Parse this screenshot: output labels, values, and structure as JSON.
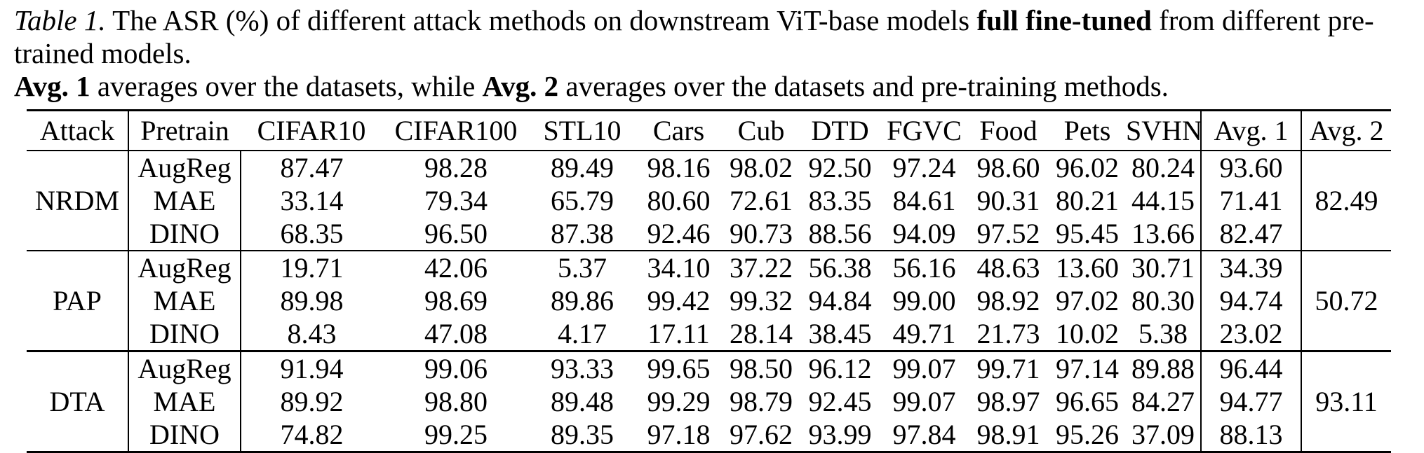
{
  "caption": {
    "line1_runs": [
      {
        "text": "Table 1.",
        "style": "italic"
      },
      {
        "text": " The ASR (%) of different attack methods on downstream ViT-base models ",
        "style": "normal"
      },
      {
        "text": "full fine-tuned",
        "style": "bold"
      },
      {
        "text": " from different pre-trained models.",
        "style": "normal"
      }
    ],
    "line2_runs": [
      {
        "text": "Avg. 1",
        "style": "bold"
      },
      {
        "text": " averages over the datasets, while ",
        "style": "normal"
      },
      {
        "text": "Avg. 2",
        "style": "bold"
      },
      {
        "text": " averages over the datasets and pre-training methods.",
        "style": "normal"
      }
    ]
  },
  "table": {
    "columns": [
      "Attack",
      "Pretrain",
      "CIFAR10",
      "CIFAR100",
      "STL10",
      "Cars",
      "Cub",
      "DTD",
      "FGVC",
      "Food",
      "Pets",
      "SVHN",
      "Avg. 1",
      "Avg. 2"
    ],
    "blocks": [
      {
        "attack": "NRDM",
        "attack_bold": false,
        "avg2": "82.49",
        "avg2_bold": false,
        "rows": [
          {
            "pretrain": "AugReg",
            "values": [
              "87.47",
              "98.28",
              "89.49",
              "98.16",
              "98.02",
              "92.50",
              "97.24",
              "98.60",
              "96.02",
              "80.24"
            ],
            "avg1": "93.60"
          },
          {
            "pretrain": "MAE",
            "values": [
              "33.14",
              "79.34",
              "65.79",
              "80.60",
              "72.61",
              "83.35",
              "84.61",
              "90.31",
              "80.21",
              "44.15"
            ],
            "avg1": "71.41"
          },
          {
            "pretrain": "DINO",
            "values": [
              "68.35",
              "96.50",
              "87.38",
              "92.46",
              "90.73",
              "88.56",
              "94.09",
              "97.52",
              "95.45",
              "13.66"
            ],
            "avg1": "82.47"
          }
        ]
      },
      {
        "attack": "PAP",
        "attack_bold": false,
        "avg2": "50.72",
        "avg2_bold": false,
        "rows": [
          {
            "pretrain": "AugReg",
            "values": [
              "19.71",
              "42.06",
              "5.37",
              "34.10",
              "37.22",
              "56.38",
              "56.16",
              "48.63",
              "13.60",
              "30.71"
            ],
            "avg1": "34.39"
          },
          {
            "pretrain": "MAE",
            "values": [
              "89.98",
              "98.69",
              "89.86",
              "99.42",
              "99.32",
              "94.84",
              "99.00",
              "98.92",
              "97.02",
              "80.30"
            ],
            "avg1": "94.74"
          },
          {
            "pretrain": "DINO",
            "values": [
              "8.43",
              "47.08",
              "4.17",
              "17.11",
              "28.14",
              "38.45",
              "49.71",
              "21.73",
              "10.02",
              "5.38"
            ],
            "avg1": "23.02"
          }
        ]
      },
      {
        "attack": "DTA",
        "attack_bold": true,
        "avg2": "93.11",
        "avg2_bold": true,
        "rows": [
          {
            "pretrain": "AugReg",
            "values": [
              "91.94",
              "99.06",
              "93.33",
              "99.65",
              "98.50",
              "96.12",
              "99.07",
              "99.71",
              "97.14",
              "89.88"
            ],
            "avg1": "96.44"
          },
          {
            "pretrain": "MAE",
            "values": [
              "89.92",
              "98.80",
              "89.48",
              "99.29",
              "98.79",
              "92.45",
              "99.07",
              "98.97",
              "96.65",
              "84.27"
            ],
            "avg1": "94.77"
          },
          {
            "pretrain": "DINO",
            "values": [
              "74.82",
              "99.25",
              "89.35",
              "97.18",
              "97.62",
              "93.99",
              "97.84",
              "98.91",
              "95.26",
              "37.09"
            ],
            "avg1": "88.13"
          }
        ]
      }
    ]
  },
  "colors": {
    "text": "#000000",
    "background": "#ffffff",
    "rule": "#000000"
  }
}
